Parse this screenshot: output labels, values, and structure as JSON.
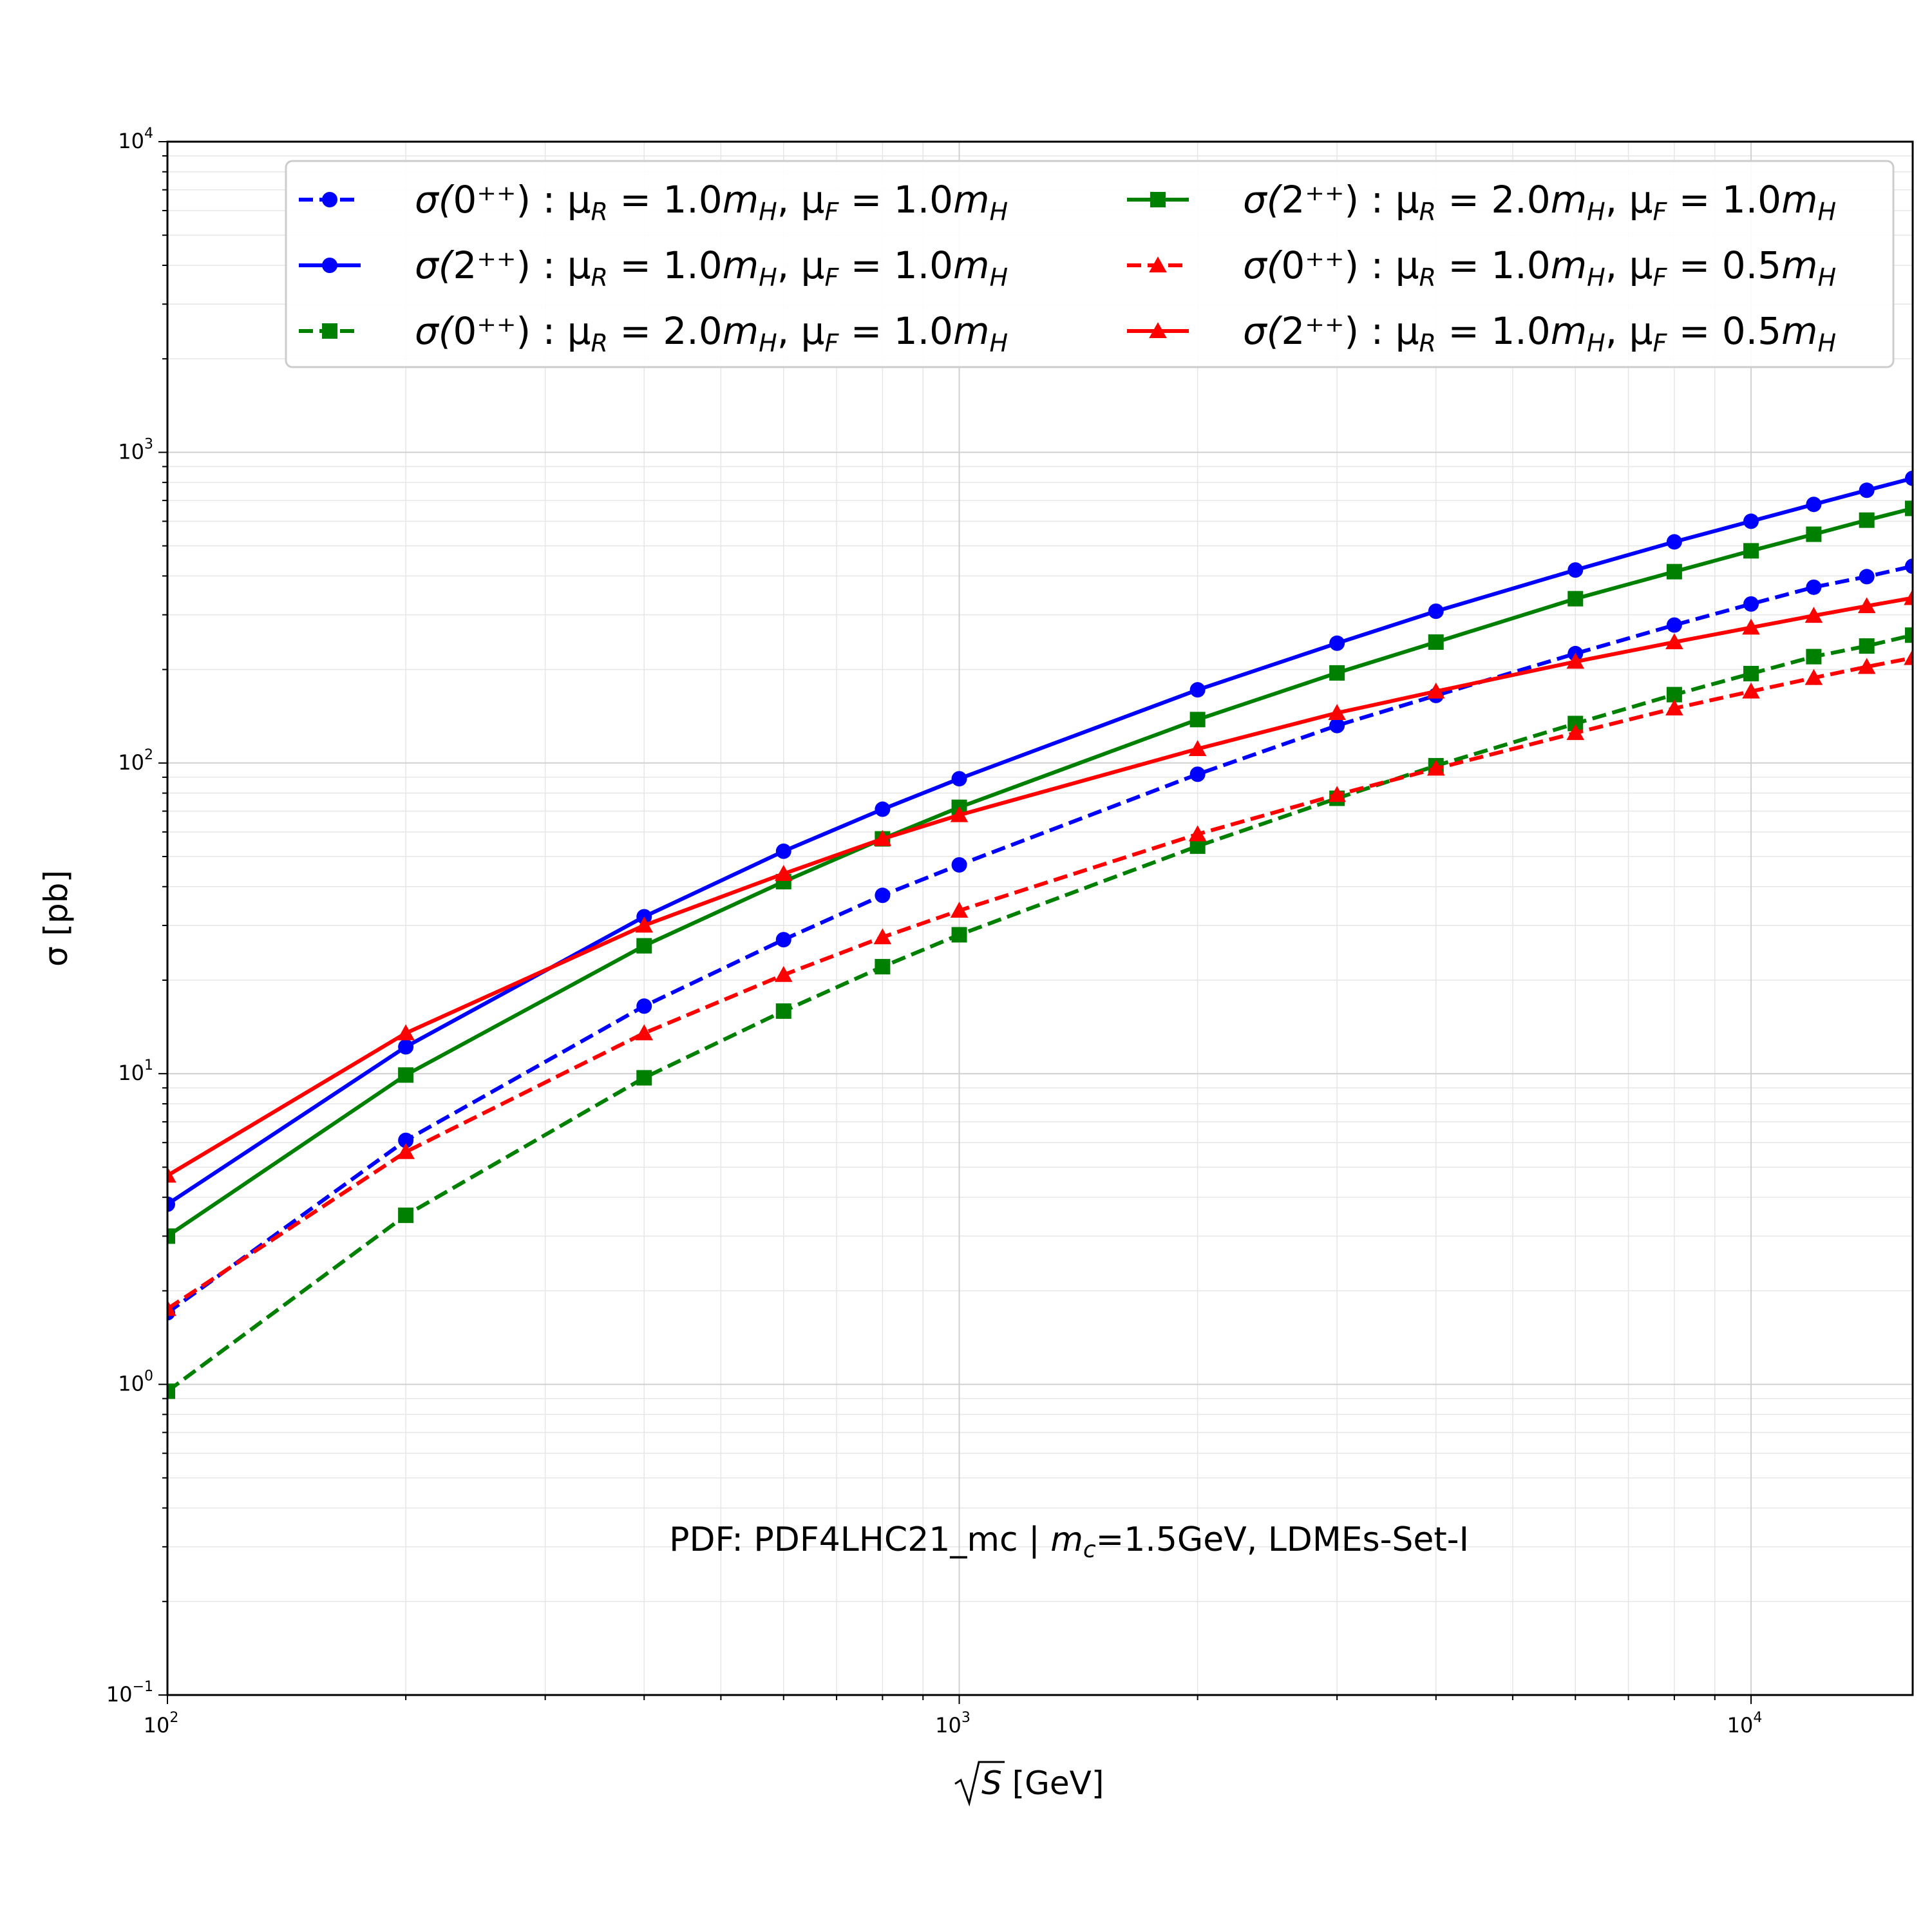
{
  "chart_data": {
    "type": "line",
    "xscale": "log",
    "yscale": "log",
    "xlim": [
      100,
      16000
    ],
    "ylim": [
      0.1,
      10000
    ],
    "grid": true,
    "legend_position": "top",
    "xlabel": "√S [GeV]",
    "xlabel_main": "S",
    "xlabel_unit": " [GeV]",
    "ylabel": "σ [pb]",
    "annotation": "PDF: PDF4LHC21_mc | m_c=1.5GeV, LDMEs-Set-I",
    "annotation_parts": [
      "PDF: PDF4LHC21_mc | ",
      "m",
      "c",
      "=1.5GeV, LDMEs-Set-I"
    ],
    "x_ticks": [
      {
        "value": 100,
        "base": "10",
        "exp": "2"
      },
      {
        "value": 1000,
        "base": "10",
        "exp": "3"
      },
      {
        "value": 10000,
        "base": "10",
        "exp": "4"
      }
    ],
    "y_ticks": [
      {
        "value": 0.1,
        "base": "10",
        "exp": "−1"
      },
      {
        "value": 1,
        "base": "10",
        "exp": "0"
      },
      {
        "value": 10,
        "base": "10",
        "exp": "1"
      },
      {
        "value": 100,
        "base": "10",
        "exp": "2"
      },
      {
        "value": 1000,
        "base": "10",
        "exp": "3"
      },
      {
        "value": 10000,
        "base": "10",
        "exp": "4"
      }
    ],
    "x": [
      100,
      200,
      400,
      600,
      800,
      1000,
      2000,
      3000,
      4000,
      6000,
      8000,
      10000,
      12000,
      14000,
      16000
    ],
    "series": [
      {
        "name": "σ(0⁺⁺) : μR = 1.0mH, μF = 1.0mH",
        "state": "0",
        "muR": "1.0",
        "muF": "1.0",
        "color": "#0000ff",
        "dash": true,
        "marker": "circle",
        "values": [
          1.7,
          6.1,
          16.5,
          27,
          37.5,
          47,
          92,
          132,
          165,
          225,
          278,
          325,
          368,
          398,
          430
        ]
      },
      {
        "name": "σ(2⁺⁺) : μR = 1.0mH, μF = 1.0mH",
        "state": "2",
        "muR": "1.0",
        "muF": "1.0",
        "color": "#0000ff",
        "dash": false,
        "marker": "circle",
        "values": [
          3.8,
          12.2,
          32,
          52,
          71,
          89,
          172,
          243,
          308,
          418,
          515,
          600,
          680,
          755,
          825
        ]
      },
      {
        "name": "σ(0⁺⁺) : μR = 2.0mH, μF = 1.0mH",
        "state": "0",
        "muR": "2.0",
        "muF": "1.0",
        "color": "#008000",
        "dash": true,
        "marker": "square",
        "values": [
          0.95,
          3.5,
          9.7,
          15.9,
          22.1,
          28,
          54,
          77,
          98,
          134,
          166,
          194,
          220,
          238,
          258
        ]
      },
      {
        "name": "σ(2⁺⁺) : μR = 2.0mH, μF = 1.0mH",
        "state": "2",
        "muR": "2.0",
        "muF": "1.0",
        "color": "#008000",
        "dash": false,
        "marker": "square",
        "values": [
          3.0,
          9.9,
          25.8,
          41.5,
          57,
          72,
          138,
          195,
          245,
          338,
          413,
          482,
          545,
          605,
          660
        ]
      },
      {
        "name": "σ(0⁺⁺) : μR = 1.0mH, μF = 0.5mH",
        "state": "0",
        "muR": "1.0",
        "muF": "0.5",
        "color": "#ff0000",
        "dash": true,
        "marker": "triangle",
        "values": [
          1.75,
          5.6,
          13.5,
          20.8,
          27.5,
          33.5,
          59,
          79,
          96,
          125,
          150,
          170,
          188,
          204,
          218
        ]
      },
      {
        "name": "σ(2⁺⁺) : μR = 1.0mH, μF = 0.5mH",
        "state": "2",
        "muR": "1.0",
        "muF": "0.5",
        "color": "#ff0000",
        "dash": false,
        "marker": "triangle",
        "values": [
          4.7,
          13.5,
          30,
          44,
          57,
          68,
          111,
          145,
          170,
          212,
          245,
          273,
          298,
          320,
          340
        ]
      }
    ]
  }
}
